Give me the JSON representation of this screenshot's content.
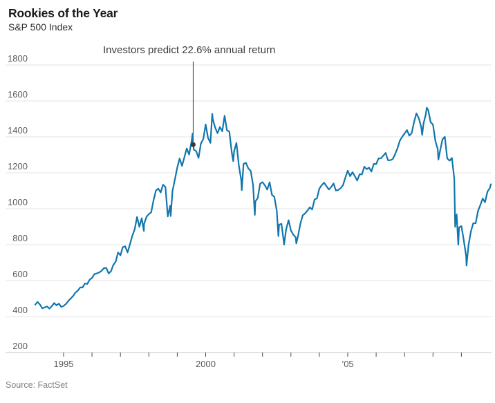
{
  "header": {
    "title": "Rookies of the Year",
    "subtitle": "S&P 500 Index"
  },
  "source_note": "Source: FactSet",
  "colors": {
    "line": "#1176ad",
    "grid": "#e4e4e4",
    "baseline": "#c6c6c6",
    "tick_mark": "#4a4a4a",
    "axis_text": "#595959",
    "annotation_line": "#333333",
    "annotation_marker": "#3a3a3a"
  },
  "chart_data": {
    "type": "line",
    "title": "Rookies of the Year",
    "subtitle": "S&P 500 Index",
    "xlabel": "",
    "ylabel": "S&P 500 Index",
    "x_unit": "decimal_year",
    "xlim": [
      1993.9,
      2010.1
    ],
    "ylim": [
      200,
      1800
    ],
    "grid": "horizontal",
    "legend": "none",
    "y_ticks": [
      1800,
      1600,
      1400,
      1200,
      1000,
      800,
      600,
      400,
      200
    ],
    "x_ticks": [
      {
        "year": 1995,
        "label": "1995"
      },
      {
        "year": 1996,
        "label": ""
      },
      {
        "year": 1997,
        "label": ""
      },
      {
        "year": 1998,
        "label": ""
      },
      {
        "year": 1999,
        "label": ""
      },
      {
        "year": 2000,
        "label": "2000"
      },
      {
        "year": 2001,
        "label": ""
      },
      {
        "year": 2002,
        "label": ""
      },
      {
        "year": 2003,
        "label": ""
      },
      {
        "year": 2004,
        "label": ""
      },
      {
        "year": 2005,
        "label": "’05"
      },
      {
        "year": 2006,
        "label": ""
      },
      {
        "year": 2007,
        "label": ""
      },
      {
        "year": 2008,
        "label": ""
      },
      {
        "year": 2009,
        "label": ""
      }
    ],
    "annotation": {
      "text": "Investors predict 22.6% annual return",
      "x": 1999.56,
      "y": 1356.9
    },
    "series": [
      {
        "name": "S&P 500 Index",
        "color": "#1176ad",
        "points": [
          [
            1994.0,
            466.4
          ],
          [
            1994.083,
            481.6
          ],
          [
            1994.167,
            467.1
          ],
          [
            1994.25,
            445.8
          ],
          [
            1994.333,
            450.9
          ],
          [
            1994.417,
            456.5
          ],
          [
            1994.5,
            444.3
          ],
          [
            1994.583,
            458.3
          ],
          [
            1994.667,
            475.5
          ],
          [
            1994.75,
            462.7
          ],
          [
            1994.833,
            472.4
          ],
          [
            1994.917,
            453.7
          ],
          [
            1995.0,
            459.3
          ],
          [
            1995.083,
            470.4
          ],
          [
            1995.167,
            487.4
          ],
          [
            1995.25,
            500.7
          ],
          [
            1995.333,
            514.7
          ],
          [
            1995.417,
            533.4
          ],
          [
            1995.5,
            544.8
          ],
          [
            1995.583,
            562.1
          ],
          [
            1995.667,
            561.9
          ],
          [
            1995.75,
            584.4
          ],
          [
            1995.833,
            581.5
          ],
          [
            1995.917,
            605.4
          ],
          [
            1996.0,
            615.9
          ],
          [
            1996.083,
            636.0
          ],
          [
            1996.167,
            640.4
          ],
          [
            1996.25,
            645.5
          ],
          [
            1996.333,
            654.2
          ],
          [
            1996.417,
            669.1
          ],
          [
            1996.5,
            670.6
          ],
          [
            1996.583,
            640.0
          ],
          [
            1996.667,
            652.0
          ],
          [
            1996.75,
            687.3
          ],
          [
            1996.833,
            705.3
          ],
          [
            1996.917,
            757.0
          ],
          [
            1997.0,
            740.7
          ],
          [
            1997.083,
            786.2
          ],
          [
            1997.167,
            790.8
          ],
          [
            1997.25,
            757.1
          ],
          [
            1997.333,
            801.3
          ],
          [
            1997.417,
            848.3
          ],
          [
            1997.5,
            885.1
          ],
          [
            1997.583,
            954.3
          ],
          [
            1997.667,
            899.5
          ],
          [
            1997.75,
            947.3
          ],
          [
            1997.825,
            877.0
          ],
          [
            1997.833,
            914.6
          ],
          [
            1997.917,
            955.4
          ],
          [
            1998.0,
            970.4
          ],
          [
            1998.083,
            980.3
          ],
          [
            1998.167,
            1049.3
          ],
          [
            1998.25,
            1101.8
          ],
          [
            1998.333,
            1111.8
          ],
          [
            1998.417,
            1090.8
          ],
          [
            1998.5,
            1133.8
          ],
          [
            1998.583,
            1120.7
          ],
          [
            1998.667,
            957.3
          ],
          [
            1998.75,
            1017.0
          ],
          [
            1998.77,
            959.4
          ],
          [
            1998.833,
            1098.7
          ],
          [
            1998.917,
            1163.6
          ],
          [
            1999.0,
            1229.2
          ],
          [
            1999.083,
            1279.6
          ],
          [
            1999.167,
            1238.3
          ],
          [
            1999.25,
            1286.4
          ],
          [
            1999.333,
            1335.2
          ],
          [
            1999.417,
            1301.8
          ],
          [
            1999.5,
            1372.7
          ],
          [
            1999.54,
            1418.8
          ],
          [
            1999.56,
            1356.9
          ],
          [
            1999.583,
            1328.7
          ],
          [
            1999.667,
            1320.4
          ],
          [
            1999.75,
            1282.7
          ],
          [
            1999.833,
            1362.9
          ],
          [
            1999.917,
            1388.9
          ],
          [
            2000.0,
            1469.3
          ],
          [
            2000.083,
            1394.5
          ],
          [
            2000.167,
            1366.4
          ],
          [
            2000.23,
            1527.5
          ],
          [
            2000.25,
            1498.6
          ],
          [
            2000.333,
            1452.4
          ],
          [
            2000.417,
            1420.6
          ],
          [
            2000.5,
            1454.6
          ],
          [
            2000.583,
            1430.8
          ],
          [
            2000.667,
            1517.7
          ],
          [
            2000.75,
            1436.5
          ],
          [
            2000.833,
            1429.4
          ],
          [
            2000.917,
            1315.0
          ],
          [
            2000.97,
            1264.7
          ],
          [
            2001.0,
            1320.3
          ],
          [
            2001.083,
            1366.0
          ],
          [
            2001.167,
            1239.9
          ],
          [
            2001.25,
            1160.3
          ],
          [
            2001.27,
            1103.3
          ],
          [
            2001.333,
            1249.5
          ],
          [
            2001.417,
            1255.8
          ],
          [
            2001.5,
            1224.4
          ],
          [
            2001.583,
            1211.2
          ],
          [
            2001.667,
            1133.6
          ],
          [
            2001.73,
            965.8
          ],
          [
            2001.75,
            1040.9
          ],
          [
            2001.833,
            1059.8
          ],
          [
            2001.917,
            1139.5
          ],
          [
            2002.0,
            1148.1
          ],
          [
            2002.083,
            1130.2
          ],
          [
            2002.167,
            1106.7
          ],
          [
            2002.25,
            1147.4
          ],
          [
            2002.333,
            1076.9
          ],
          [
            2002.417,
            1067.1
          ],
          [
            2002.5,
            989.8
          ],
          [
            2002.56,
            847.8
          ],
          [
            2002.583,
            911.6
          ],
          [
            2002.667,
            916.1
          ],
          [
            2002.75,
            815.3
          ],
          [
            2002.76,
            800.6
          ],
          [
            2002.833,
            885.8
          ],
          [
            2002.917,
            936.3
          ],
          [
            2003.0,
            879.8
          ],
          [
            2003.083,
            855.7
          ],
          [
            2003.167,
            841.2
          ],
          [
            2003.19,
            807.5
          ],
          [
            2003.25,
            848.2
          ],
          [
            2003.333,
            916.9
          ],
          [
            2003.417,
            963.6
          ],
          [
            2003.5,
            974.5
          ],
          [
            2003.583,
            990.3
          ],
          [
            2003.667,
            1008.0
          ],
          [
            2003.75,
            996.0
          ],
          [
            2003.833,
            1050.7
          ],
          [
            2003.917,
            1058.2
          ],
          [
            2004.0,
            1111.9
          ],
          [
            2004.083,
            1131.1
          ],
          [
            2004.167,
            1144.9
          ],
          [
            2004.25,
            1126.2
          ],
          [
            2004.333,
            1107.3
          ],
          [
            2004.417,
            1120.7
          ],
          [
            2004.5,
            1140.8
          ],
          [
            2004.583,
            1101.7
          ],
          [
            2004.667,
            1104.2
          ],
          [
            2004.75,
            1114.6
          ],
          [
            2004.833,
            1130.2
          ],
          [
            2004.917,
            1173.8
          ],
          [
            2005.0,
            1211.9
          ],
          [
            2005.083,
            1181.3
          ],
          [
            2005.167,
            1203.6
          ],
          [
            2005.25,
            1180.6
          ],
          [
            2005.333,
            1156.9
          ],
          [
            2005.417,
            1191.5
          ],
          [
            2005.5,
            1191.3
          ],
          [
            2005.583,
            1234.2
          ],
          [
            2005.667,
            1220.3
          ],
          [
            2005.75,
            1228.8
          ],
          [
            2005.833,
            1207.0
          ],
          [
            2005.917,
            1249.5
          ],
          [
            2006.0,
            1248.3
          ],
          [
            2006.083,
            1280.1
          ],
          [
            2006.167,
            1280.7
          ],
          [
            2006.25,
            1294.9
          ],
          [
            2006.333,
            1310.6
          ],
          [
            2006.417,
            1270.1
          ],
          [
            2006.5,
            1270.2
          ],
          [
            2006.583,
            1276.7
          ],
          [
            2006.667,
            1303.8
          ],
          [
            2006.75,
            1335.9
          ],
          [
            2006.833,
            1377.9
          ],
          [
            2006.917,
            1400.6
          ],
          [
            2007.0,
            1418.3
          ],
          [
            2007.083,
            1438.2
          ],
          [
            2007.167,
            1406.8
          ],
          [
            2007.25,
            1420.9
          ],
          [
            2007.333,
            1482.4
          ],
          [
            2007.417,
            1530.6
          ],
          [
            2007.5,
            1503.4
          ],
          [
            2007.583,
            1455.3
          ],
          [
            2007.62,
            1411.3
          ],
          [
            2007.667,
            1474.0
          ],
          [
            2007.75,
            1526.8
          ],
          [
            2007.78,
            1561.8
          ],
          [
            2007.833,
            1549.4
          ],
          [
            2007.917,
            1481.1
          ],
          [
            2008.0,
            1468.4
          ],
          [
            2008.083,
            1378.6
          ],
          [
            2008.167,
            1330.6
          ],
          [
            2008.19,
            1273.4
          ],
          [
            2008.25,
            1322.7
          ],
          [
            2008.333,
            1385.6
          ],
          [
            2008.417,
            1400.4
          ],
          [
            2008.5,
            1280.0
          ],
          [
            2008.583,
            1267.4
          ],
          [
            2008.667,
            1282.8
          ],
          [
            2008.75,
            1166.4
          ],
          [
            2008.78,
            899.2
          ],
          [
            2008.833,
            968.8
          ],
          [
            2008.89,
            800.0
          ],
          [
            2008.917,
            896.2
          ],
          [
            2009.0,
            903.3
          ],
          [
            2009.083,
            825.9
          ],
          [
            2009.167,
            735.1
          ],
          [
            2009.18,
            683.4
          ],
          [
            2009.25,
            797.9
          ],
          [
            2009.333,
            872.8
          ],
          [
            2009.417,
            919.1
          ],
          [
            2009.5,
            919.3
          ],
          [
            2009.583,
            987.5
          ],
          [
            2009.667,
            1020.6
          ],
          [
            2009.75,
            1057.1
          ],
          [
            2009.833,
            1036.2
          ],
          [
            2009.917,
            1095.6
          ],
          [
            2010.0,
            1115.1
          ],
          [
            2010.04,
            1136.5
          ]
        ]
      }
    ]
  }
}
